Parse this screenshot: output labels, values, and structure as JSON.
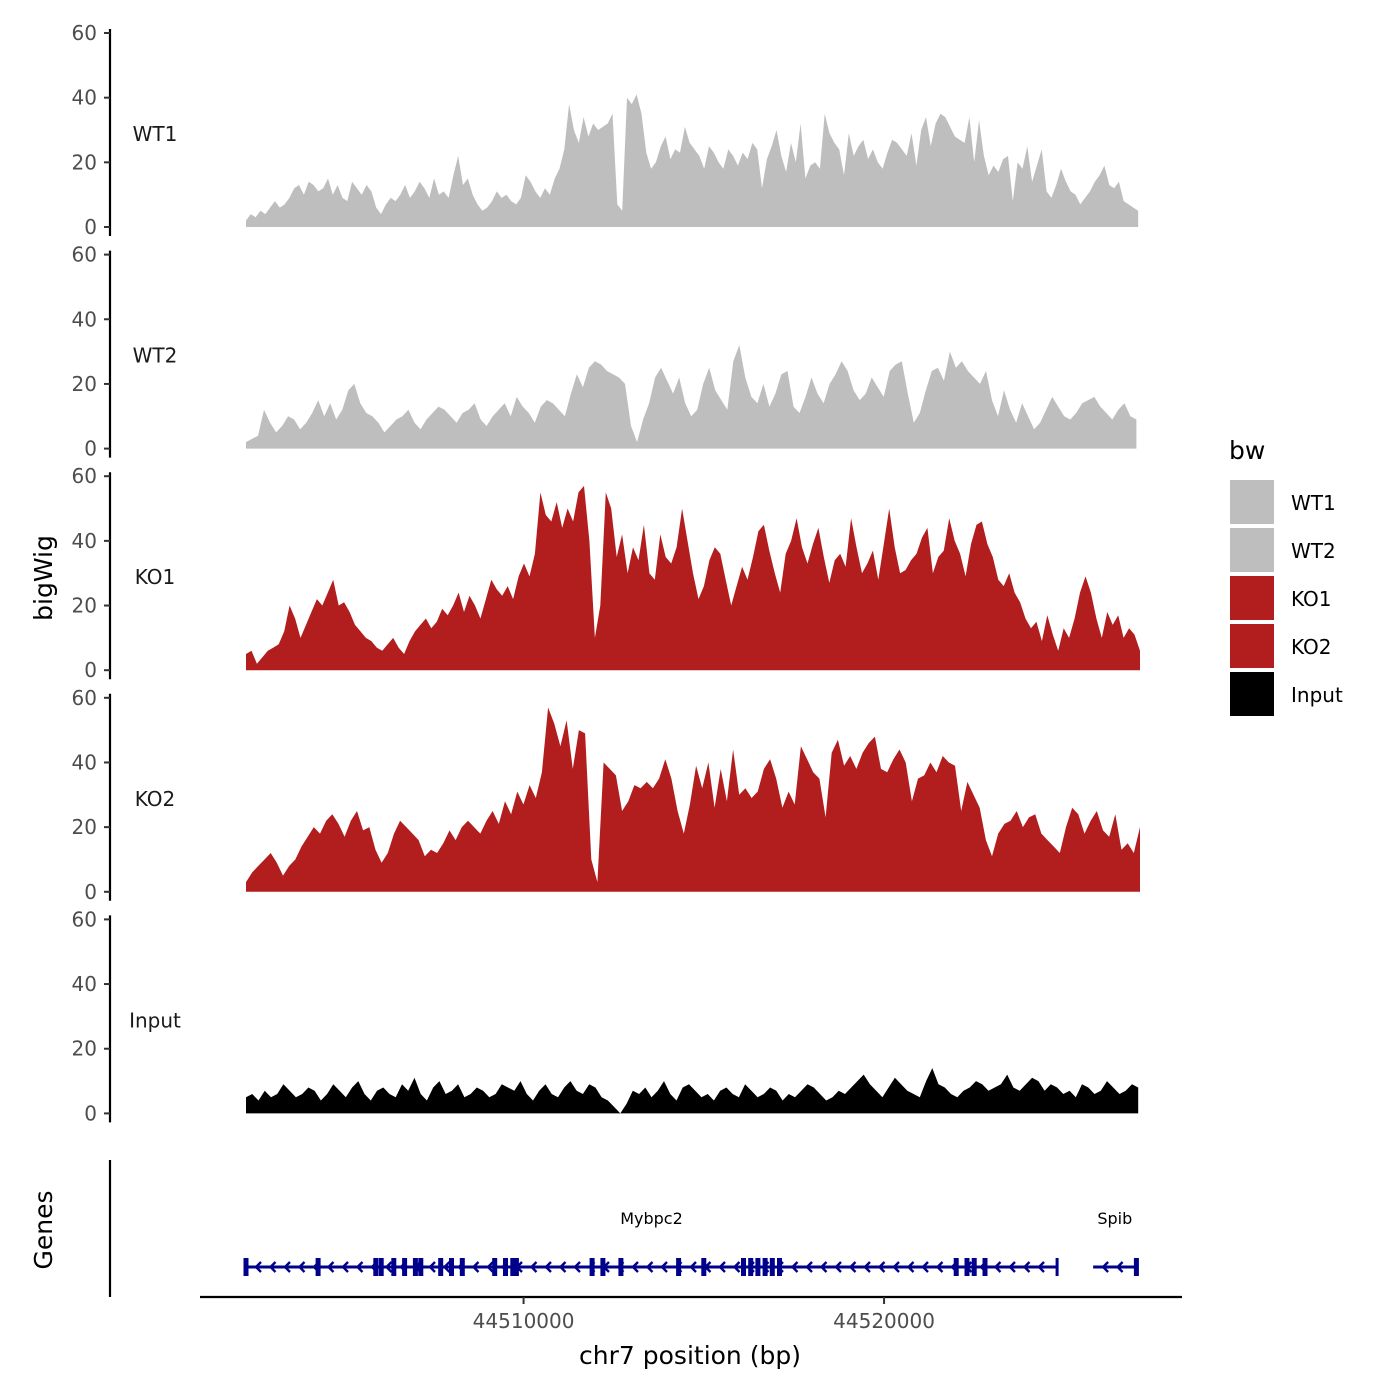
{
  "chart_data": {
    "type": "area",
    "title": "",
    "ylabel": "bigWig",
    "xlabel": "chr7 position (bp)",
    "x_ticks": [
      44510000,
      44520000
    ],
    "x_tick_labels": [
      "44510000",
      "44520000"
    ],
    "xlim": [
      44501000,
      44528500
    ],
    "data_range": [
      44502300,
      44527100
    ],
    "ylim": [
      0,
      60
    ],
    "y_ticks": [
      0,
      20,
      40,
      60
    ],
    "y_tick_labels": [
      "0",
      "20",
      "40",
      "60"
    ],
    "series": [
      {
        "name": "WT1",
        "color": "#bebebe",
        "x_start": 44502300,
        "x_end": 44527050,
        "values": [
          2,
          4,
          3,
          5,
          4,
          6,
          8,
          6,
          7,
          9,
          12,
          13,
          10,
          14,
          13,
          11,
          12,
          15,
          10,
          13,
          9,
          8,
          14,
          12,
          10,
          13,
          11,
          6,
          4,
          7,
          9,
          8,
          10,
          13,
          9,
          11,
          14,
          12,
          9,
          15,
          10,
          11,
          9,
          16,
          22,
          13,
          15,
          10,
          7,
          5,
          6,
          8,
          11,
          9,
          10,
          8,
          7,
          9,
          16,
          14,
          11,
          9,
          12,
          10,
          15,
          18,
          24,
          38,
          30,
          26,
          34,
          28,
          32,
          30,
          31,
          32,
          35,
          7,
          5,
          40,
          38,
          41,
          35,
          23,
          18,
          20,
          25,
          28,
          21,
          24,
          23,
          31,
          26,
          24,
          22,
          18,
          25,
          23,
          20,
          18,
          24,
          22,
          19,
          23,
          21,
          26,
          24,
          12,
          21,
          25,
          30,
          22,
          17,
          26,
          20,
          32,
          15,
          19,
          20,
          18,
          35,
          29,
          26,
          24,
          16,
          29,
          22,
          25,
          27,
          21,
          24,
          20,
          18,
          23,
          27,
          26,
          24,
          22,
          29,
          19,
          30,
          34,
          25,
          32,
          35,
          34,
          31,
          28,
          27,
          26,
          34,
          20,
          33,
          22,
          16,
          19,
          17,
          21,
          22,
          8,
          20,
          18,
          25,
          14,
          19,
          24,
          11,
          9,
          13,
          18,
          14,
          11,
          10,
          7,
          9,
          11,
          14,
          16,
          19,
          13,
          12,
          14,
          8,
          7,
          6,
          5
        ]
      },
      {
        "name": "WT2",
        "color": "#bebebe",
        "x_start": 44502300,
        "x_end": 44527000,
        "values": [
          2,
          3,
          4,
          12,
          8,
          5,
          7,
          10,
          9,
          6,
          8,
          11,
          15,
          10,
          14,
          9,
          12,
          18,
          20,
          14,
          11,
          10,
          8,
          5,
          7,
          9,
          10,
          12,
          8,
          6,
          9,
          11,
          13,
          12,
          10,
          8,
          11,
          12,
          14,
          9,
          7,
          10,
          12,
          14,
          10,
          16,
          13,
          11,
          8,
          13,
          15,
          14,
          12,
          10,
          17,
          23,
          19,
          25,
          27,
          26,
          24,
          23,
          22,
          20,
          7,
          2,
          9,
          14,
          22,
          25,
          21,
          17,
          22,
          14,
          10,
          12,
          20,
          25,
          18,
          15,
          12,
          27,
          32,
          22,
          16,
          14,
          20,
          13,
          17,
          23,
          24,
          13,
          11,
          16,
          22,
          17,
          14,
          20,
          23,
          27,
          24,
          18,
          15,
          17,
          22,
          19,
          16,
          24,
          26,
          27,
          17,
          8,
          11,
          18,
          24,
          25,
          21,
          30,
          25,
          27,
          24,
          22,
          20,
          24,
          15,
          10,
          18,
          12,
          8,
          14,
          10,
          6,
          8,
          12,
          16,
          13,
          10,
          9,
          11,
          14,
          15,
          16,
          13,
          11,
          9,
          12,
          14,
          10,
          9
        ]
      },
      {
        "name": "KO1",
        "color": "#b21e1e",
        "x_start": 44502300,
        "x_end": 44527100,
        "values": [
          5,
          6,
          2,
          4,
          6,
          7,
          8,
          12,
          20,
          16,
          10,
          14,
          18,
          22,
          20,
          24,
          28,
          20,
          21,
          18,
          14,
          12,
          10,
          9,
          7,
          6,
          8,
          10,
          7,
          5,
          9,
          12,
          14,
          16,
          13,
          15,
          19,
          17,
          20,
          24,
          18,
          23,
          20,
          16,
          22,
          28,
          25,
          23,
          26,
          22,
          29,
          33,
          29,
          36,
          55,
          48,
          46,
          52,
          44,
          50,
          46,
          55,
          57,
          40,
          10,
          20,
          55,
          50,
          35,
          42,
          30,
          38,
          34,
          45,
          30,
          28,
          42,
          35,
          33,
          38,
          50,
          40,
          30,
          22,
          26,
          34,
          38,
          36,
          28,
          20,
          26,
          32,
          28,
          35,
          43,
          45,
          37,
          30,
          24,
          36,
          40,
          47,
          38,
          33,
          39,
          44,
          35,
          27,
          34,
          36,
          32,
          47,
          38,
          30,
          33,
          37,
          28,
          39,
          50,
          38,
          30,
          31,
          34,
          36,
          41,
          44,
          30,
          35,
          37,
          47,
          40,
          36,
          29,
          39,
          45,
          46,
          39,
          35,
          28,
          26,
          30,
          24,
          21,
          16,
          13,
          15,
          9,
          17,
          11,
          6,
          13,
          10,
          16,
          24,
          29,
          24,
          16,
          10,
          18,
          14,
          17,
          10,
          13,
          11,
          6
        ]
      },
      {
        "name": "KO2",
        "color": "#b21e1e",
        "x_start": 44502300,
        "x_end": 44527100,
        "values": [
          3,
          6,
          8,
          10,
          12,
          9,
          5,
          8,
          10,
          14,
          17,
          20,
          18,
          22,
          24,
          21,
          17,
          22,
          25,
          19,
          20,
          13,
          9,
          12,
          18,
          22,
          20,
          18,
          16,
          11,
          13,
          12,
          15,
          19,
          16,
          20,
          22,
          20,
          18,
          22,
          25,
          21,
          28,
          24,
          31,
          27,
          33,
          29,
          37,
          57,
          52,
          45,
          53,
          38,
          50,
          49,
          10,
          3,
          40,
          38,
          36,
          25,
          28,
          33,
          32,
          34,
          32,
          35,
          41,
          35,
          25,
          18,
          27,
          39,
          32,
          40,
          26,
          38,
          28,
          44,
          30,
          32,
          29,
          31,
          38,
          41,
          35,
          26,
          31,
          27,
          45,
          41,
          37,
          35,
          23,
          43,
          47,
          39,
          42,
          38,
          43,
          46,
          48,
          38,
          37,
          41,
          44,
          40,
          28,
          35,
          36,
          40,
          37,
          42,
          40,
          39,
          25,
          34,
          30,
          26,
          16,
          11,
          18,
          21,
          22,
          25,
          20,
          23,
          24,
          18,
          16,
          14,
          12,
          20,
          26,
          24,
          18,
          22,
          25,
          19,
          17,
          24,
          13,
          15,
          12,
          20
        ]
      },
      {
        "name": "Input",
        "color": "#000000",
        "x_start": 44502300,
        "x_end": 44527050,
        "values": [
          5,
          6,
          4,
          7,
          5,
          6,
          9,
          7,
          5,
          6,
          8,
          7,
          4,
          6,
          9,
          7,
          5,
          8,
          10,
          6,
          4,
          7,
          8,
          6,
          5,
          9,
          7,
          11,
          6,
          4,
          8,
          10,
          6,
          7,
          9,
          5,
          6,
          8,
          7,
          5,
          6,
          9,
          8,
          7,
          10,
          6,
          4,
          7,
          9,
          6,
          5,
          8,
          10,
          7,
          6,
          9,
          8,
          5,
          4,
          2,
          0,
          3,
          7,
          6,
          8,
          5,
          7,
          10,
          6,
          4,
          8,
          9,
          7,
          5,
          6,
          4,
          7,
          8,
          6,
          5,
          9,
          7,
          5,
          6,
          8,
          7,
          4,
          6,
          5,
          7,
          9,
          8,
          6,
          4,
          5,
          7,
          6,
          8,
          10,
          12,
          9,
          7,
          5,
          8,
          11,
          9,
          7,
          6,
          5,
          10,
          14,
          9,
          8,
          6,
          5,
          7,
          8,
          10,
          9,
          7,
          8,
          9,
          12,
          8,
          7,
          9,
          11,
          10,
          7,
          9,
          8,
          6,
          7,
          5,
          9,
          8,
          6,
          7,
          10,
          8,
          6,
          7,
          9,
          8
        ]
      }
    ],
    "legend": {
      "title": "bw",
      "position": "right",
      "entries": [
        {
          "label": "WT1",
          "color": "#bebebe"
        },
        {
          "label": "WT2",
          "color": "#bebebe"
        },
        {
          "label": "KO1",
          "color": "#b21e1e"
        },
        {
          "label": "KO2",
          "color": "#b21e1e"
        },
        {
          "label": "Input",
          "color": "#000000"
        }
      ]
    },
    "genes_track": {
      "ylabel": "Genes",
      "color": "#00008b",
      "genes": [
        {
          "name": "Mybpc2",
          "start": 44502300,
          "end": 44524800,
          "strand": "-",
          "exons": [
            44502300,
            44504300,
            44505900,
            44506050,
            44506400,
            44506700,
            44507000,
            44507150,
            44507700,
            44508000,
            44508300,
            44509200,
            44509500,
            44509700,
            44509800,
            44511900,
            44512200,
            44512700,
            44514300,
            44515000,
            44516100,
            44516300,
            44516500,
            44516700,
            44516900,
            44517100,
            44522000,
            44522300,
            44522500,
            44522800
          ]
        },
        {
          "name": "Spib",
          "start": 44525800,
          "end": 44527000,
          "strand": "-",
          "exons": [
            44527000
          ]
        }
      ]
    }
  }
}
